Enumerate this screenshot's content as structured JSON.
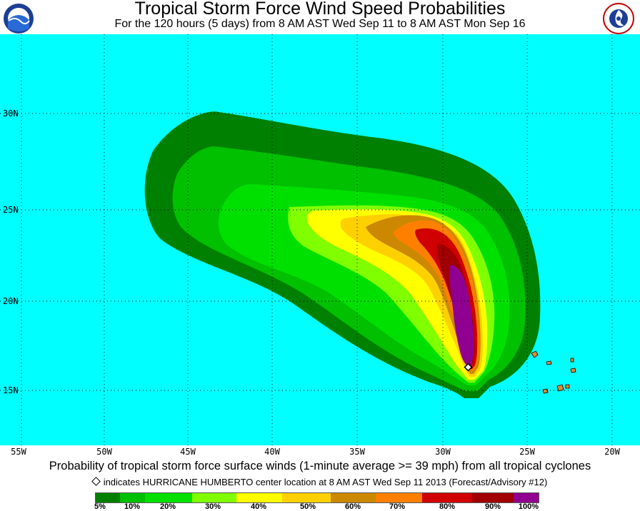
{
  "header": {
    "title": "Tropical Storm Force Wind Speed Probabilities",
    "subtitle": "For the 120 hours (5 days) from 8 AM AST Wed Sep 11 to 8 AM AST Mon Sep 16",
    "left_logo": "NOAA",
    "right_logo": "National Weather Service"
  },
  "map": {
    "ocean_color": "#00ffff",
    "land_color": "#e08a33",
    "longitude_labels": [
      "55W",
      "50W",
      "45W",
      "40W",
      "35W",
      "30W",
      "25W",
      "20W"
    ],
    "latitude_labels": [
      "30N",
      "25N",
      "20N",
      "15N"
    ],
    "storm_marker": "center-location-diamond"
  },
  "caption": "Probability of tropical storm force surface winds (1-minute average >= 39 mph) from all tropical cyclones",
  "note": "indicates HURRICANE HUMBERTO center location at 8 AM AST Wed Sep 11 2013 (Forecast/Advisory #12)",
  "legend": {
    "labels": [
      "5%",
      "10%",
      "20%",
      "30%",
      "40%",
      "50%",
      "60%",
      "70%",
      "80%",
      "90%",
      "100%"
    ],
    "colors": [
      "#008000",
      "#00c000",
      "#00e000",
      "#80ff00",
      "#ffff00",
      "#ffd000",
      "#cc8800",
      "#ff8000",
      "#d00000",
      "#a00000",
      "#900090"
    ]
  }
}
